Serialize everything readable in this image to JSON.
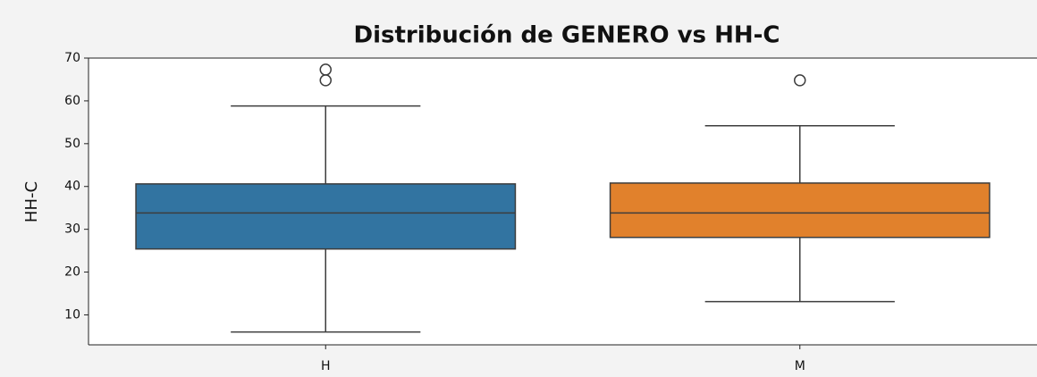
{
  "chart_data": {
    "type": "box",
    "title": "Distribución de GENERO vs HH-C",
    "ylabel": "HH-C",
    "categories": [
      "H",
      "M"
    ],
    "boxes": [
      {
        "color": "#3274a1",
        "whislo": 6,
        "q1": 25.4,
        "med": 33.8,
        "q3": 40.6,
        "whishi": 58.8,
        "fliers": [
          67.3,
          64.8
        ]
      },
      {
        "color": "#e1812c",
        "whislo": 13.1,
        "q1": 28.1,
        "med": 33.8,
        "q3": 40.8,
        "whishi": 54.2,
        "fliers": [
          64.8
        ]
      }
    ],
    "ylim": [
      3,
      70
    ],
    "yticks": [
      10,
      20,
      30,
      40,
      50,
      60,
      70
    ]
  }
}
